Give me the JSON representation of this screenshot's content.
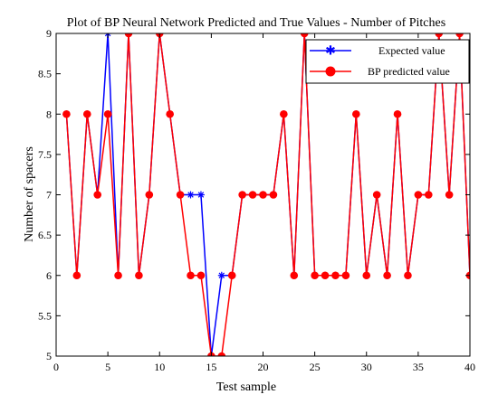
{
  "chart_data": {
    "type": "line",
    "title": "Plot of BP Neural Network Predicted and True Values - Number of Pitches",
    "xlabel": "Test sample",
    "ylabel": "Number of spacers",
    "xlim": [
      0,
      40
    ],
    "ylim": [
      5,
      9
    ],
    "xticks": [
      0,
      5,
      10,
      15,
      20,
      25,
      30,
      35,
      40
    ],
    "yticks": [
      5,
      5.5,
      6,
      6.5,
      7,
      7.5,
      8,
      8.5,
      9
    ],
    "xtick_labels": [
      "0",
      "5",
      "10",
      "15",
      "20",
      "25",
      "30",
      "35",
      "40"
    ],
    "ytick_labels": [
      "5",
      "5.5",
      "6",
      "6.5",
      "7",
      "7.5",
      "8",
      "8.5",
      "9"
    ],
    "grid": false,
    "legend_position": "top-right",
    "x": [
      1,
      2,
      3,
      4,
      5,
      6,
      7,
      8,
      9,
      10,
      11,
      12,
      13,
      14,
      15,
      16,
      17,
      18,
      19,
      20,
      21,
      22,
      23,
      24,
      25,
      26,
      27,
      28,
      29,
      30,
      31,
      32,
      33,
      34,
      35,
      36,
      37,
      38,
      39,
      40
    ],
    "series": [
      {
        "name": "Expected value",
        "color": "#0000ff",
        "marker": "asterisk",
        "values": [
          8,
          6,
          8,
          7,
          9,
          6,
          9,
          6,
          7,
          9,
          8,
          7,
          7,
          7,
          5,
          6,
          6,
          7,
          7,
          7,
          7,
          8,
          6,
          9,
          6,
          6,
          6,
          6,
          8,
          6,
          7,
          6,
          8,
          6,
          7,
          7,
          9,
          7,
          9,
          6
        ]
      },
      {
        "name": "BP predicted value",
        "color": "#ff0000",
        "marker": "circle",
        "values": [
          8,
          6,
          8,
          7,
          8,
          6,
          9,
          6,
          7,
          9,
          8,
          7,
          6,
          6,
          5,
          5,
          6,
          7,
          7,
          7,
          7,
          8,
          6,
          9,
          6,
          6,
          6,
          6,
          8,
          6,
          7,
          6,
          8,
          6,
          7,
          7,
          9,
          7,
          9,
          6
        ]
      }
    ]
  }
}
